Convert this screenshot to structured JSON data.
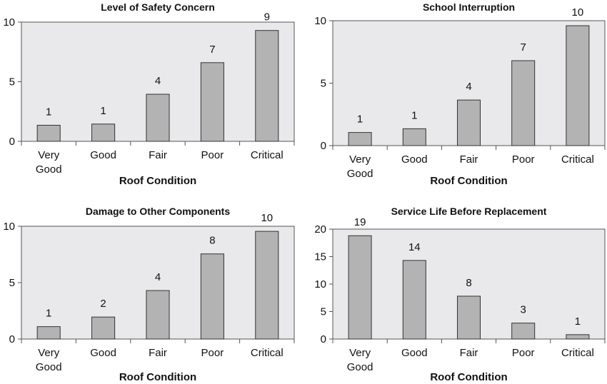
{
  "chart_data": [
    {
      "type": "bar",
      "title": "Level of Safety Concern",
      "xlabel": "Roof Condition",
      "ylabel": "",
      "categories": [
        [
          "Very",
          "Good"
        ],
        [
          "Good"
        ],
        [
          "Fair"
        ],
        [
          "Poor"
        ],
        [
          "Critical"
        ]
      ],
      "values": [
        1.35,
        1.45,
        3.95,
        6.6,
        9.3
      ],
      "data_labels": [
        "1",
        "1",
        "4",
        "7",
        "9"
      ],
      "ylim": [
        0,
        10
      ],
      "yticks": [
        0,
        5,
        10
      ]
    },
    {
      "type": "bar",
      "title": "School Interruption",
      "xlabel": "Roof Condition",
      "ylabel": "",
      "categories": [
        [
          "Very",
          "Good"
        ],
        [
          "Good"
        ],
        [
          "Fair"
        ],
        [
          "Poor"
        ],
        [
          "Critical"
        ]
      ],
      "values": [
        1.05,
        1.35,
        3.65,
        6.8,
        9.6
      ],
      "data_labels": [
        "1",
        "1",
        "4",
        "7",
        "10"
      ],
      "ylim": [
        0,
        10
      ],
      "yticks": [
        0,
        5,
        10
      ]
    },
    {
      "type": "bar",
      "title": "Damage to Other Components",
      "xlabel": "Roof Condition",
      "ylabel": "",
      "categories": [
        [
          "Very",
          "Good"
        ],
        [
          "Good"
        ],
        [
          "Fair"
        ],
        [
          "Poor"
        ],
        [
          "Critical"
        ]
      ],
      "values": [
        1.1,
        1.95,
        4.3,
        7.55,
        9.55
      ],
      "data_labels": [
        "1",
        "2",
        "4",
        "8",
        "10"
      ],
      "ylim": [
        0,
        10
      ],
      "yticks": [
        0,
        5,
        10
      ]
    },
    {
      "type": "bar",
      "title": "Service Life Before Replacement",
      "xlabel": "Roof Condition",
      "ylabel": "",
      "categories": [
        [
          "Very",
          "Good"
        ],
        [
          "Good"
        ],
        [
          "Fair"
        ],
        [
          "Poor"
        ],
        [
          "Critical"
        ]
      ],
      "values": [
        18.8,
        14.3,
        7.8,
        2.9,
        0.8
      ],
      "data_labels": [
        "19",
        "14",
        "8",
        "3",
        "1"
      ],
      "ylim": [
        0,
        20
      ],
      "yticks": [
        0,
        5,
        10,
        15,
        20
      ]
    }
  ],
  "style": {
    "plot_bg": "#e9e9ec",
    "bar_fill": "#b3b3b3",
    "bar_stroke": "#333333",
    "axis_color": "#555555"
  }
}
